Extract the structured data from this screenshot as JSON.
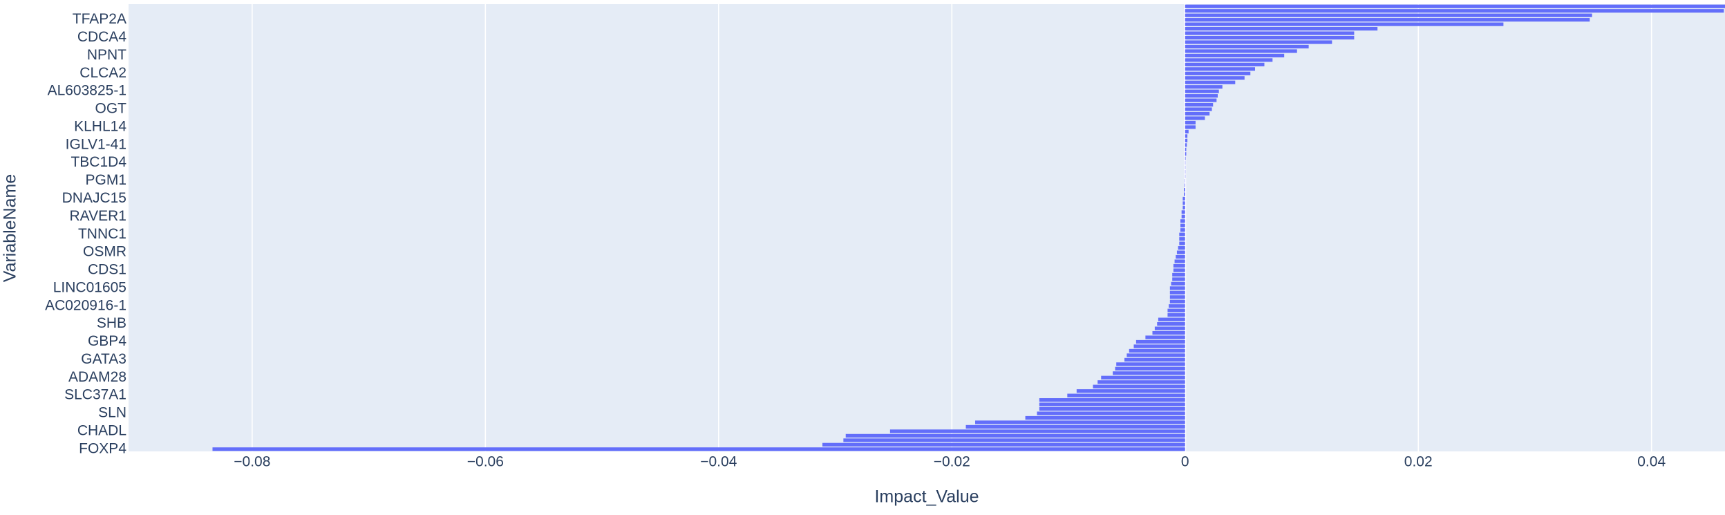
{
  "chart_data": {
    "type": "barh",
    "xlabel": "Impact_Value",
    "ylabel": "VariableName",
    "color": "#636efa",
    "background": "#e5ecf6",
    "grid": true,
    "xlim": [
      -0.0906,
      0.0463
    ],
    "xticks": [
      {
        "value": -0.08,
        "label": "−0.08"
      },
      {
        "value": -0.06,
        "label": "−0.06"
      },
      {
        "value": -0.04,
        "label": "−0.04"
      },
      {
        "value": -0.02,
        "label": "−0.02"
      },
      0,
      0.02,
      0.04
    ],
    "categories": [
      "FOXP4",
      null,
      null,
      null,
      "CHADL",
      null,
      null,
      null,
      "SLN",
      null,
      null,
      null,
      "SLC37A1",
      null,
      null,
      null,
      "ADAM28",
      null,
      null,
      null,
      "GATA3",
      null,
      null,
      null,
      "GBP4",
      null,
      null,
      null,
      "SHB",
      null,
      null,
      null,
      "AC020916-1",
      null,
      null,
      null,
      "LINC01605",
      null,
      null,
      null,
      "CDS1",
      null,
      null,
      null,
      "OSMR",
      null,
      null,
      null,
      "TNNC1",
      null,
      null,
      null,
      "RAVER1",
      null,
      null,
      null,
      "DNAJC15",
      null,
      null,
      null,
      "PGM1",
      null,
      null,
      null,
      "TBC1D4",
      null,
      null,
      null,
      "IGLV1-41",
      null,
      null,
      null,
      "KLHL14",
      null,
      null,
      null,
      "OGT",
      null,
      null,
      null,
      "AL603825-1",
      null,
      null,
      null,
      "CLCA2",
      null,
      null,
      null,
      "NPNT",
      null,
      null,
      null,
      "CDCA4",
      null,
      null,
      null,
      "TFAP2A",
      null,
      null,
      null
    ],
    "values": [
      -0.0834,
      -0.0311,
      -0.0293,
      -0.0291,
      -0.0253,
      -0.0188,
      -0.018,
      -0.0137,
      -0.0127,
      -0.0125,
      -0.0125,
      -0.0125,
      -0.0101,
      -0.0093,
      -0.0079,
      -0.0075,
      -0.0072,
      -0.0062,
      -0.006,
      -0.0059,
      -0.0052,
      -0.005,
      -0.0048,
      -0.0044,
      -0.0042,
      -0.0034,
      -0.0028,
      -0.0026,
      -0.0024,
      -0.0023,
      -0.0015,
      -0.0015,
      -0.0014,
      -0.0013,
      -0.0013,
      -0.0013,
      -0.0013,
      -0.0012,
      -0.0011,
      -0.0011,
      -0.001,
      -0.001,
      -0.0009,
      -0.0008,
      -0.0007,
      -0.0006,
      -0.0005,
      -0.0005,
      -0.0005,
      -0.0004,
      -0.0004,
      -0.0004,
      -0.0003,
      -0.0003,
      -0.0002,
      -0.0002,
      -0.0002,
      -0.0001,
      -0.0001,
      -5e-05,
      -2e-05,
      1e-05,
      2e-05,
      3e-05,
      3e-05,
      5e-05,
      0.0001,
      0.0001,
      0.00015,
      0.0002,
      0.0002,
      0.0003,
      0.0009,
      0.0009,
      0.0017,
      0.0021,
      0.0023,
      0.0024,
      0.0027,
      0.0028,
      0.0029,
      0.0032,
      0.0043,
      0.0051,
      0.0056,
      0.006,
      0.0068,
      0.0075,
      0.0085,
      0.0096,
      0.0106,
      0.0126,
      0.0145,
      0.0145,
      0.0165,
      0.0273,
      0.0347,
      0.0349,
      0.0462,
      0.0463
    ]
  }
}
